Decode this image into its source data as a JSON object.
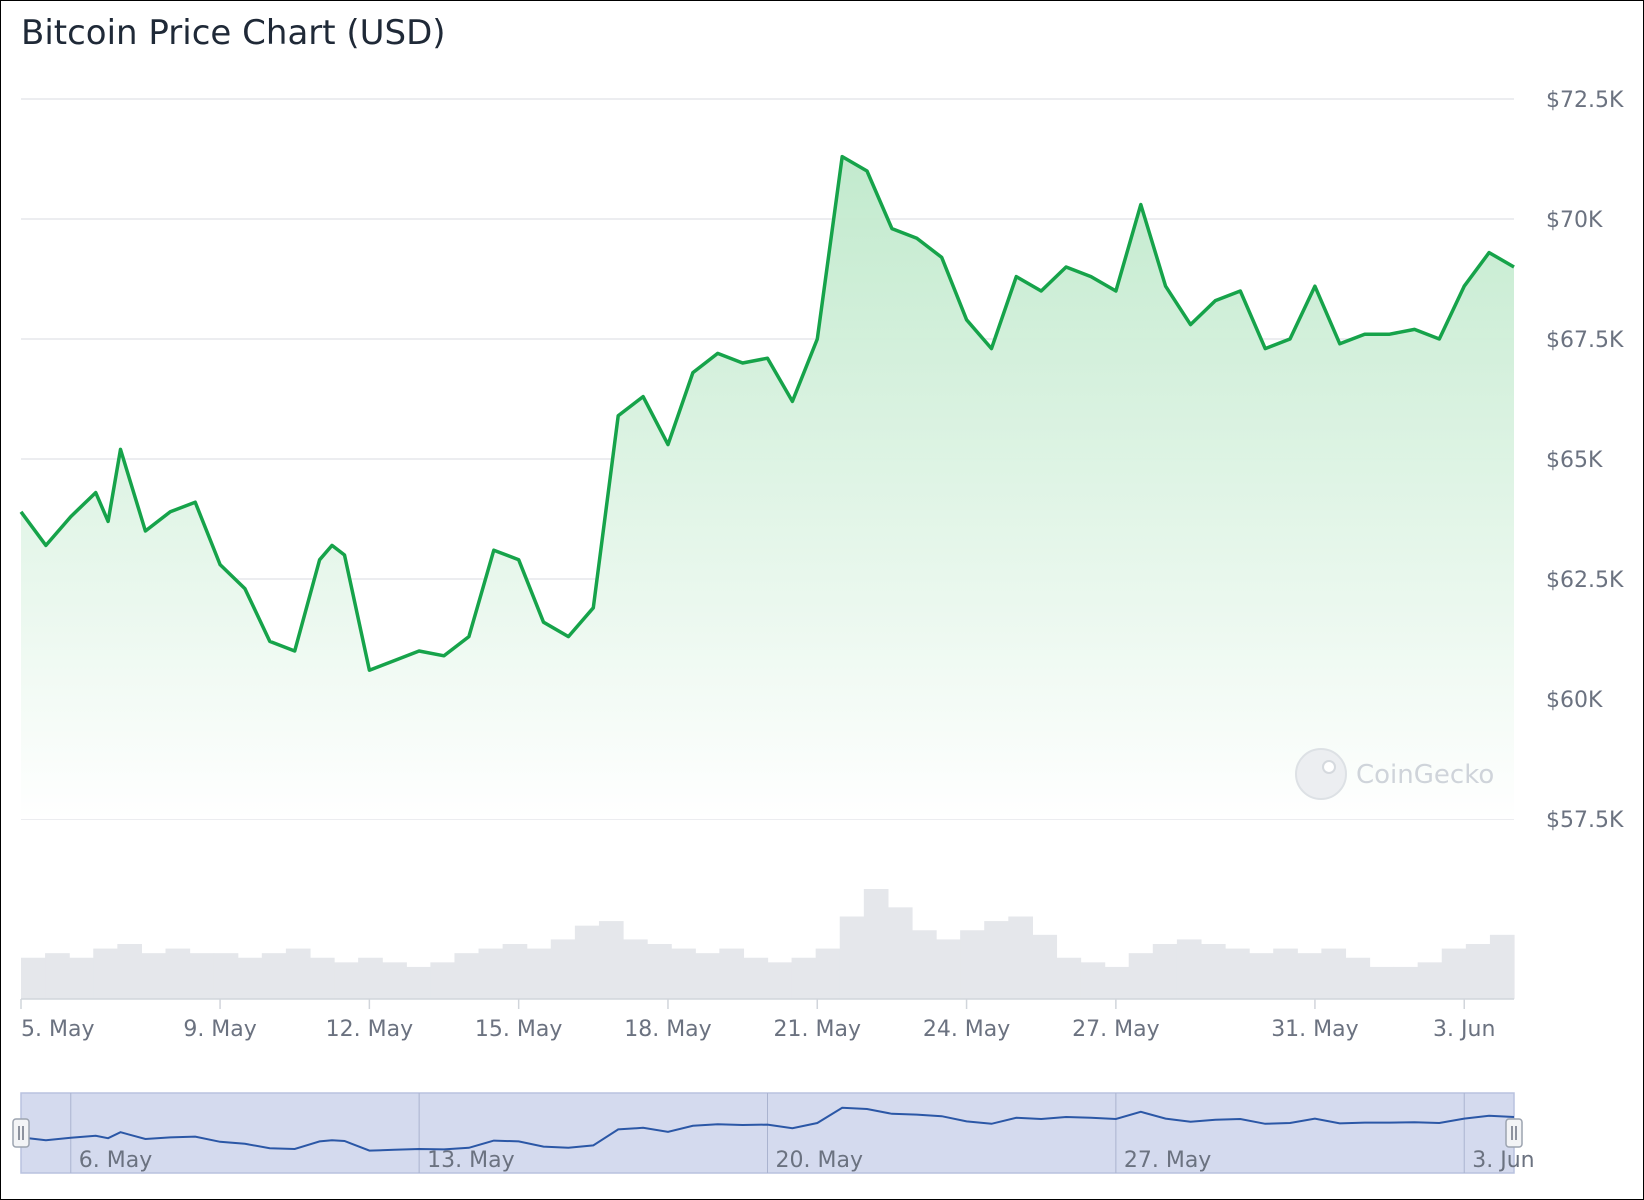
{
  "title": "Bitcoin Price Chart (USD)",
  "watermark": "CoinGecko",
  "colors": {
    "line": "#16a34a",
    "area_top": "#bfe9cb",
    "volume": "#e5e7eb",
    "navigator_bg": "#d4daee",
    "navigator_line": "#2b57a6",
    "gridline": "#e5e7eb",
    "text": "#6b7280"
  },
  "chart_data": {
    "type": "area",
    "title": "Bitcoin Price Chart (USD)",
    "xlabel": "",
    "ylabel": "",
    "currency": "USD",
    "ylim": [
      57500,
      72500
    ],
    "y_ticks": [
      72500,
      70000,
      67500,
      65000,
      62500,
      60000,
      57500
    ],
    "y_tick_labels": [
      "$72.5K",
      "$70K",
      "$67.5K",
      "$65K",
      "$62.5K",
      "$60K",
      "$57.5K"
    ],
    "x_range": [
      "2024-05-05",
      "2024-06-04"
    ],
    "x_ticks": [
      "2024-05-05",
      "2024-05-09",
      "2024-05-12",
      "2024-05-15",
      "2024-05-18",
      "2024-05-21",
      "2024-05-24",
      "2024-05-27",
      "2024-05-31",
      "2024-06-03"
    ],
    "x_tick_labels": [
      "5. May",
      "9. May",
      "12. May",
      "15. May",
      "18. May",
      "21. May",
      "24. May",
      "27. May",
      "31. May",
      "3. Jun"
    ],
    "grid": true,
    "legend": "none",
    "series": [
      {
        "values_date": [
          "2024-05-05",
          "2024-05-05 12:00",
          "2024-05-06",
          "2024-05-06 12:00",
          "2024-05-06 18:00",
          "2024-05-07",
          "2024-05-07 12:00",
          "2024-05-08",
          "2024-05-08 12:00",
          "2024-05-09",
          "2024-05-09 12:00",
          "2024-05-10",
          "2024-05-10 12:00",
          "2024-05-11",
          "2024-05-11 06:00",
          "2024-05-11 12:00",
          "2024-05-12",
          "2024-05-12 12:00",
          "2024-05-13",
          "2024-05-13 12:00",
          "2024-05-14",
          "2024-05-14 12:00",
          "2024-05-15",
          "2024-05-15 12:00",
          "2024-05-16",
          "2024-05-16 12:00",
          "2024-05-17",
          "2024-05-17 12:00",
          "2024-05-18",
          "2024-05-18 12:00",
          "2024-05-19",
          "2024-05-19 12:00",
          "2024-05-20",
          "2024-05-20 12:00",
          "2024-05-21",
          "2024-05-21 12:00",
          "2024-05-22",
          "2024-05-22 12:00",
          "2024-05-23",
          "2024-05-23 12:00",
          "2024-05-24",
          "2024-05-24 12:00",
          "2024-05-25",
          "2024-05-25 12:00",
          "2024-05-26",
          "2024-05-26 12:00",
          "2024-05-27",
          "2024-05-27 12:00",
          "2024-05-28",
          "2024-05-28 12:00",
          "2024-05-29",
          "2024-05-29 12:00",
          "2024-05-30",
          "2024-05-30 12:00",
          "2024-05-31",
          "2024-05-31 12:00",
          "2024-06-01",
          "2024-06-01 12:00",
          "2024-06-02",
          "2024-06-02 12:00",
          "2024-06-03",
          "2024-06-03 12:00",
          "2024-06-04"
        ],
        "values": [
          63900,
          63200,
          63800,
          64300,
          63700,
          65200,
          63500,
          63900,
          64100,
          62800,
          62300,
          61200,
          61000,
          62900,
          63200,
          63000,
          60600,
          60800,
          61000,
          60900,
          61300,
          63100,
          62900,
          61600,
          61300,
          61900,
          65900,
          66300,
          65300,
          66800,
          67200,
          67000,
          67100,
          66200,
          67500,
          71300,
          71000,
          69800,
          69600,
          69200,
          67900,
          67300,
          68800,
          68500,
          69000,
          68800,
          68500,
          70300,
          68600,
          67800,
          68300,
          68500,
          67300,
          67500,
          68600,
          67400,
          67600,
          67600,
          67700,
          67500,
          68600,
          69300,
          69000
        ]
      }
    ],
    "volume_series": [
      9,
      10,
      9,
      11,
      12,
      10,
      11,
      10,
      10,
      9,
      10,
      11,
      9,
      8,
      9,
      8,
      7,
      8,
      10,
      11,
      12,
      11,
      13,
      16,
      17,
      13,
      12,
      11,
      10,
      11,
      9,
      8,
      9,
      11,
      18,
      24,
      20,
      15,
      13,
      15,
      17,
      18,
      14,
      9,
      8,
      7,
      10,
      12,
      13,
      12,
      11,
      10,
      11,
      10,
      11,
      9,
      7,
      7,
      8,
      11,
      12,
      14
    ],
    "navigator": {
      "x_tick_labels": [
        "6. May",
        "13. May",
        "20. May",
        "27. May",
        "3. Jun"
      ],
      "x_ticks": [
        "2024-05-06",
        "2024-05-13",
        "2024-05-20",
        "2024-05-27",
        "2024-06-03"
      ]
    }
  }
}
